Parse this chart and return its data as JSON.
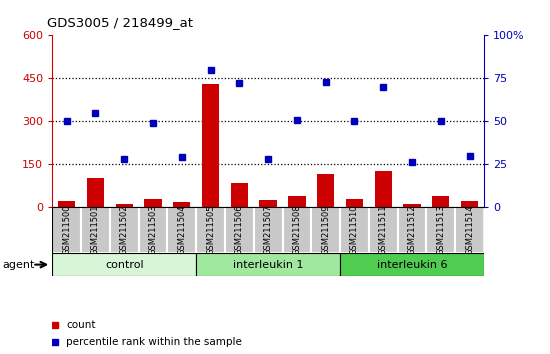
{
  "title": "GDS3005 / 218499_at",
  "samples": [
    "GSM211500",
    "GSM211501",
    "GSM211502",
    "GSM211503",
    "GSM211504",
    "GSM211505",
    "GSM211506",
    "GSM211507",
    "GSM211508",
    "GSM211509",
    "GSM211510",
    "GSM211511",
    "GSM211512",
    "GSM211513",
    "GSM211514"
  ],
  "count_values": [
    20,
    100,
    12,
    30,
    18,
    430,
    85,
    25,
    40,
    115,
    30,
    125,
    10,
    40,
    22
  ],
  "percentile_values": [
    50,
    55,
    28,
    49,
    29,
    80,
    72,
    28,
    51,
    73,
    50,
    70,
    26,
    50,
    30
  ],
  "groups": [
    {
      "label": "control",
      "start": 0,
      "end": 4,
      "color": "#d8f5d8"
    },
    {
      "label": "interleukin 1",
      "start": 5,
      "end": 9,
      "color": "#a0e8a0"
    },
    {
      "label": "interleukin 6",
      "start": 10,
      "end": 14,
      "color": "#50cc50"
    }
  ],
  "bar_color": "#cc0000",
  "dot_color": "#0000bb",
  "left_ylim": [
    0,
    600
  ],
  "right_ylim": [
    0,
    100
  ],
  "left_yticks": [
    0,
    150,
    300,
    450,
    600
  ],
  "right_yticks": [
    0,
    25,
    50,
    75,
    100
  ],
  "right_yticklabels": [
    "0",
    "25",
    "50",
    "75",
    "100%"
  ],
  "left_ycolor": "#cc0000",
  "right_ycolor": "#0000bb",
  "agent_label": "agent",
  "legend_count_label": "count",
  "legend_percentile_label": "percentile rank within the sample",
  "grid_lines": [
    150,
    300,
    450
  ],
  "sample_box_color": "#c8c8c8",
  "sample_box_edge_color": "#ffffff"
}
